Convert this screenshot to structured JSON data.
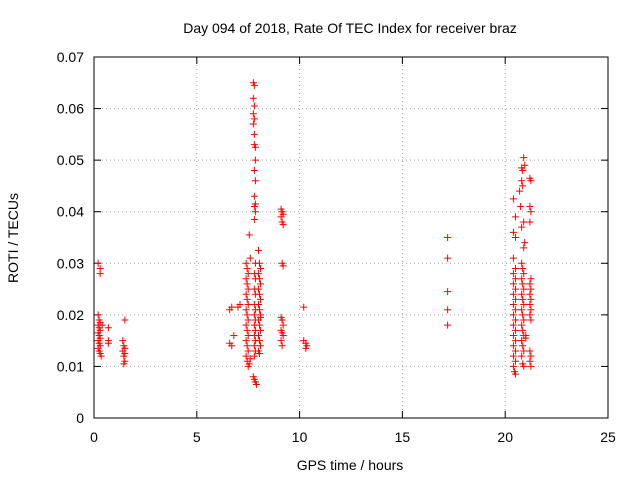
{
  "chart_data": {
    "type": "scatter",
    "title": "Day 094 of 2018, Rate Of TEC Index for receiver braz",
    "xlabel": "GPS time / hours",
    "ylabel": "ROTI / TECUs",
    "xlim": [
      0,
      25
    ],
    "ylim": [
      0,
      0.07
    ],
    "x_ticks": [
      0,
      5,
      10,
      15,
      20,
      25
    ],
    "x_tick_labels": [
      "0",
      "5",
      "10",
      "15",
      "20",
      "25"
    ],
    "y_ticks": [
      0,
      0.01,
      0.02,
      0.03,
      0.04,
      0.05,
      0.06,
      0.07
    ],
    "y_tick_labels": [
      "0",
      "0.01",
      "0.02",
      "0.03",
      "0.04",
      "0.05",
      "0.06",
      "0.07"
    ],
    "grid": true,
    "marker": "plus",
    "marker_color": "#ff0000",
    "points": [
      [
        0.2,
        0.03
      ],
      [
        0.3,
        0.029
      ],
      [
        0.3,
        0.028
      ],
      [
        0.2,
        0.02
      ],
      [
        0.25,
        0.019
      ],
      [
        0.3,
        0.0185
      ],
      [
        0.2,
        0.018
      ],
      [
        0.25,
        0.0175
      ],
      [
        0.3,
        0.017
      ],
      [
        0.2,
        0.0165
      ],
      [
        0.25,
        0.016
      ],
      [
        0.3,
        0.0155
      ],
      [
        0.2,
        0.015
      ],
      [
        0.25,
        0.0145
      ],
      [
        0.3,
        0.014
      ],
      [
        0.2,
        0.0135
      ],
      [
        0.25,
        0.013
      ],
      [
        0.3,
        0.0125
      ],
      [
        0.35,
        0.012
      ],
      [
        0.4,
        0.018
      ],
      [
        0.7,
        0.0175
      ],
      [
        0.7,
        0.015
      ],
      [
        0.7,
        0.0145
      ],
      [
        1.5,
        0.019
      ],
      [
        1.4,
        0.015
      ],
      [
        1.45,
        0.014
      ],
      [
        1.5,
        0.0135
      ],
      [
        1.4,
        0.013
      ],
      [
        1.5,
        0.0125
      ],
      [
        1.45,
        0.012
      ],
      [
        1.5,
        0.011
      ],
      [
        1.45,
        0.0105
      ],
      [
        6.6,
        0.021
      ],
      [
        6.7,
        0.0215
      ],
      [
        6.8,
        0.016
      ],
      [
        6.6,
        0.0145
      ],
      [
        6.7,
        0.014
      ],
      [
        7.0,
        0.0215
      ],
      [
        7.1,
        0.022
      ],
      [
        7.4,
        0.03
      ],
      [
        7.45,
        0.029
      ],
      [
        7.5,
        0.028
      ],
      [
        7.4,
        0.027
      ],
      [
        7.45,
        0.026
      ],
      [
        7.5,
        0.025
      ],
      [
        7.4,
        0.024
      ],
      [
        7.45,
        0.023
      ],
      [
        7.5,
        0.022
      ],
      [
        7.4,
        0.021
      ],
      [
        7.45,
        0.02
      ],
      [
        7.5,
        0.019
      ],
      [
        7.4,
        0.018
      ],
      [
        7.45,
        0.017
      ],
      [
        7.5,
        0.016
      ],
      [
        7.4,
        0.015
      ],
      [
        7.45,
        0.014
      ],
      [
        7.5,
        0.013
      ],
      [
        7.4,
        0.012
      ],
      [
        7.45,
        0.011
      ],
      [
        7.5,
        0.01
      ],
      [
        7.55,
        0.0105
      ],
      [
        7.6,
        0.0115
      ],
      [
        7.55,
        0.0355
      ],
      [
        7.6,
        0.031
      ],
      [
        7.75,
        0.065
      ],
      [
        7.8,
        0.0645
      ],
      [
        7.75,
        0.062
      ],
      [
        7.8,
        0.0605
      ],
      [
        7.75,
        0.059
      ],
      [
        7.8,
        0.058
      ],
      [
        7.75,
        0.057
      ],
      [
        7.8,
        0.053
      ],
      [
        7.85,
        0.0525
      ],
      [
        7.8,
        0.055
      ],
      [
        7.85,
        0.05
      ],
      [
        7.8,
        0.048
      ],
      [
        7.85,
        0.046
      ],
      [
        7.8,
        0.043
      ],
      [
        7.85,
        0.0415
      ],
      [
        7.8,
        0.041
      ],
      [
        7.85,
        0.04
      ],
      [
        7.8,
        0.0385
      ],
      [
        7.85,
        0.03
      ],
      [
        7.8,
        0.028
      ],
      [
        7.85,
        0.027
      ],
      [
        7.8,
        0.025
      ],
      [
        7.85,
        0.024
      ],
      [
        7.8,
        0.022
      ],
      [
        7.85,
        0.021
      ],
      [
        7.8,
        0.02
      ],
      [
        7.85,
        0.019
      ],
      [
        7.8,
        0.018
      ],
      [
        7.85,
        0.017
      ],
      [
        7.8,
        0.016
      ],
      [
        7.85,
        0.015
      ],
      [
        7.8,
        0.014
      ],
      [
        7.85,
        0.013
      ],
      [
        7.8,
        0.012
      ],
      [
        7.75,
        0.008
      ],
      [
        7.8,
        0.0075
      ],
      [
        7.85,
        0.007
      ],
      [
        7.9,
        0.0065
      ],
      [
        8.0,
        0.0325
      ],
      [
        8.05,
        0.03
      ],
      [
        8.1,
        0.029
      ],
      [
        8.0,
        0.028
      ],
      [
        8.05,
        0.027
      ],
      [
        8.1,
        0.026
      ],
      [
        8.0,
        0.025
      ],
      [
        8.05,
        0.024
      ],
      [
        8.1,
        0.023
      ],
      [
        8.0,
        0.022
      ],
      [
        8.05,
        0.021
      ],
      [
        8.1,
        0.02
      ],
      [
        8.0,
        0.019
      ],
      [
        8.05,
        0.018
      ],
      [
        8.1,
        0.017
      ],
      [
        8.0,
        0.016
      ],
      [
        8.05,
        0.015
      ],
      [
        8.1,
        0.014
      ],
      [
        8.0,
        0.013
      ],
      [
        8.05,
        0.0125
      ],
      [
        8.1,
        0.0195
      ],
      [
        9.1,
        0.0405
      ],
      [
        9.15,
        0.04
      ],
      [
        9.2,
        0.0395
      ],
      [
        9.1,
        0.039
      ],
      [
        9.15,
        0.038
      ],
      [
        9.2,
        0.0375
      ],
      [
        9.15,
        0.03
      ],
      [
        9.2,
        0.0295
      ],
      [
        9.1,
        0.0195
      ],
      [
        9.15,
        0.019
      ],
      [
        9.2,
        0.018
      ],
      [
        9.1,
        0.017
      ],
      [
        9.15,
        0.0165
      ],
      [
        9.2,
        0.016
      ],
      [
        9.1,
        0.015
      ],
      [
        9.15,
        0.014
      ],
      [
        10.2,
        0.0215
      ],
      [
        10.2,
        0.015
      ],
      [
        10.3,
        0.0145
      ],
      [
        10.35,
        0.014
      ],
      [
        10.3,
        0.0135
      ],
      [
        17.2,
        0.035
      ],
      [
        17.2,
        0.031
      ],
      [
        17.2,
        0.0245
      ],
      [
        17.2,
        0.021
      ],
      [
        17.2,
        0.018
      ],
      [
        20.4,
        0.0425
      ],
      [
        20.5,
        0.039
      ],
      [
        20.4,
        0.036
      ],
      [
        20.5,
        0.035
      ],
      [
        20.4,
        0.031
      ],
      [
        20.5,
        0.029
      ],
      [
        20.4,
        0.028
      ],
      [
        20.5,
        0.027
      ],
      [
        20.4,
        0.026
      ],
      [
        20.5,
        0.025
      ],
      [
        20.4,
        0.024
      ],
      [
        20.5,
        0.023
      ],
      [
        20.4,
        0.022
      ],
      [
        20.5,
        0.021
      ],
      [
        20.4,
        0.02
      ],
      [
        20.5,
        0.019
      ],
      [
        20.4,
        0.018
      ],
      [
        20.5,
        0.017
      ],
      [
        20.4,
        0.016
      ],
      [
        20.5,
        0.015
      ],
      [
        20.4,
        0.014
      ],
      [
        20.5,
        0.013
      ],
      [
        20.4,
        0.012
      ],
      [
        20.5,
        0.011
      ],
      [
        20.4,
        0.01
      ],
      [
        20.45,
        0.009
      ],
      [
        20.5,
        0.0085
      ],
      [
        20.7,
        0.044
      ],
      [
        20.75,
        0.041
      ],
      [
        20.8,
        0.0485
      ],
      [
        20.85,
        0.048
      ],
      [
        20.9,
        0.0505
      ],
      [
        20.95,
        0.049
      ],
      [
        20.8,
        0.046
      ],
      [
        20.85,
        0.045
      ],
      [
        20.9,
        0.038
      ],
      [
        20.8,
        0.037
      ],
      [
        20.95,
        0.034
      ],
      [
        20.9,
        0.033
      ],
      [
        20.8,
        0.03
      ],
      [
        20.85,
        0.029
      ],
      [
        20.9,
        0.028
      ],
      [
        20.8,
        0.027
      ],
      [
        20.85,
        0.026
      ],
      [
        20.9,
        0.025
      ],
      [
        20.8,
        0.024
      ],
      [
        20.85,
        0.023
      ],
      [
        20.9,
        0.022
      ],
      [
        20.8,
        0.021
      ],
      [
        20.85,
        0.02
      ],
      [
        20.9,
        0.019
      ],
      [
        20.8,
        0.018
      ],
      [
        20.85,
        0.017
      ],
      [
        20.9,
        0.016
      ],
      [
        20.8,
        0.015
      ],
      [
        20.85,
        0.014
      ],
      [
        20.9,
        0.013
      ],
      [
        20.8,
        0.012
      ],
      [
        20.85,
        0.0105
      ],
      [
        20.9,
        0.01
      ],
      [
        21.0,
        0.0155
      ],
      [
        21.0,
        0.016
      ],
      [
        21.2,
        0.0465
      ],
      [
        21.25,
        0.046
      ],
      [
        21.2,
        0.041
      ],
      [
        21.25,
        0.04
      ],
      [
        21.2,
        0.038
      ],
      [
        21.25,
        0.027
      ],
      [
        21.2,
        0.026
      ],
      [
        21.25,
        0.025
      ],
      [
        21.2,
        0.024
      ],
      [
        21.25,
        0.023
      ],
      [
        21.2,
        0.022
      ],
      [
        21.25,
        0.021
      ],
      [
        21.2,
        0.02
      ],
      [
        21.25,
        0.019
      ],
      [
        21.2,
        0.013
      ],
      [
        21.25,
        0.012
      ],
      [
        21.2,
        0.011
      ],
      [
        21.25,
        0.01
      ]
    ]
  }
}
